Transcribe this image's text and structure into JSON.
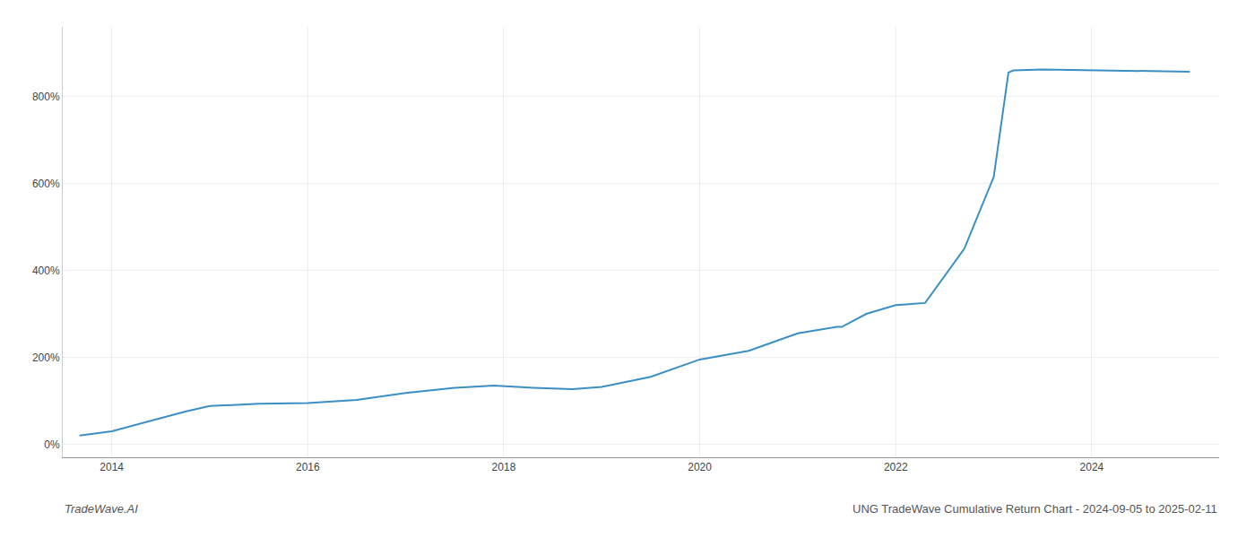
{
  "chart_data": {
    "type": "line",
    "x": [
      2013.67,
      2014.0,
      2014.75,
      2015.0,
      2015.5,
      2016.0,
      2016.5,
      2017.0,
      2017.5,
      2017.9,
      2018.3,
      2018.7,
      2019.0,
      2019.5,
      2020.0,
      2020.5,
      2021.0,
      2021.4,
      2021.45,
      2021.7,
      2022.0,
      2022.3,
      2022.7,
      2023.0,
      2023.15,
      2023.2,
      2023.5,
      2024.0,
      2024.5,
      2025.0
    ],
    "values": [
      20,
      30,
      75,
      88,
      93,
      95,
      102,
      118,
      130,
      135,
      130,
      127,
      132,
      155,
      195,
      215,
      255,
      270,
      270,
      300,
      320,
      325,
      450,
      615,
      855,
      860,
      862,
      860,
      858,
      857
    ],
    "color": "#3b8fc4",
    "xlim": [
      2013.5,
      2025.3
    ],
    "ylim": [
      -30,
      960
    ],
    "xticks": [
      2014,
      2016,
      2018,
      2020,
      2022,
      2024
    ],
    "yticks": [
      {
        "value": 0,
        "label": "0%"
      },
      {
        "value": 200,
        "label": "200%"
      },
      {
        "value": 400,
        "label": "400%"
      },
      {
        "value": 600,
        "label": "600%"
      },
      {
        "value": 800,
        "label": "800%"
      }
    ],
    "grid": true,
    "annotations": [
      "TradeWave.AI",
      "UNG TradeWave Cumulative Return Chart - 2024-09-05 to 2025-02-11"
    ]
  }
}
